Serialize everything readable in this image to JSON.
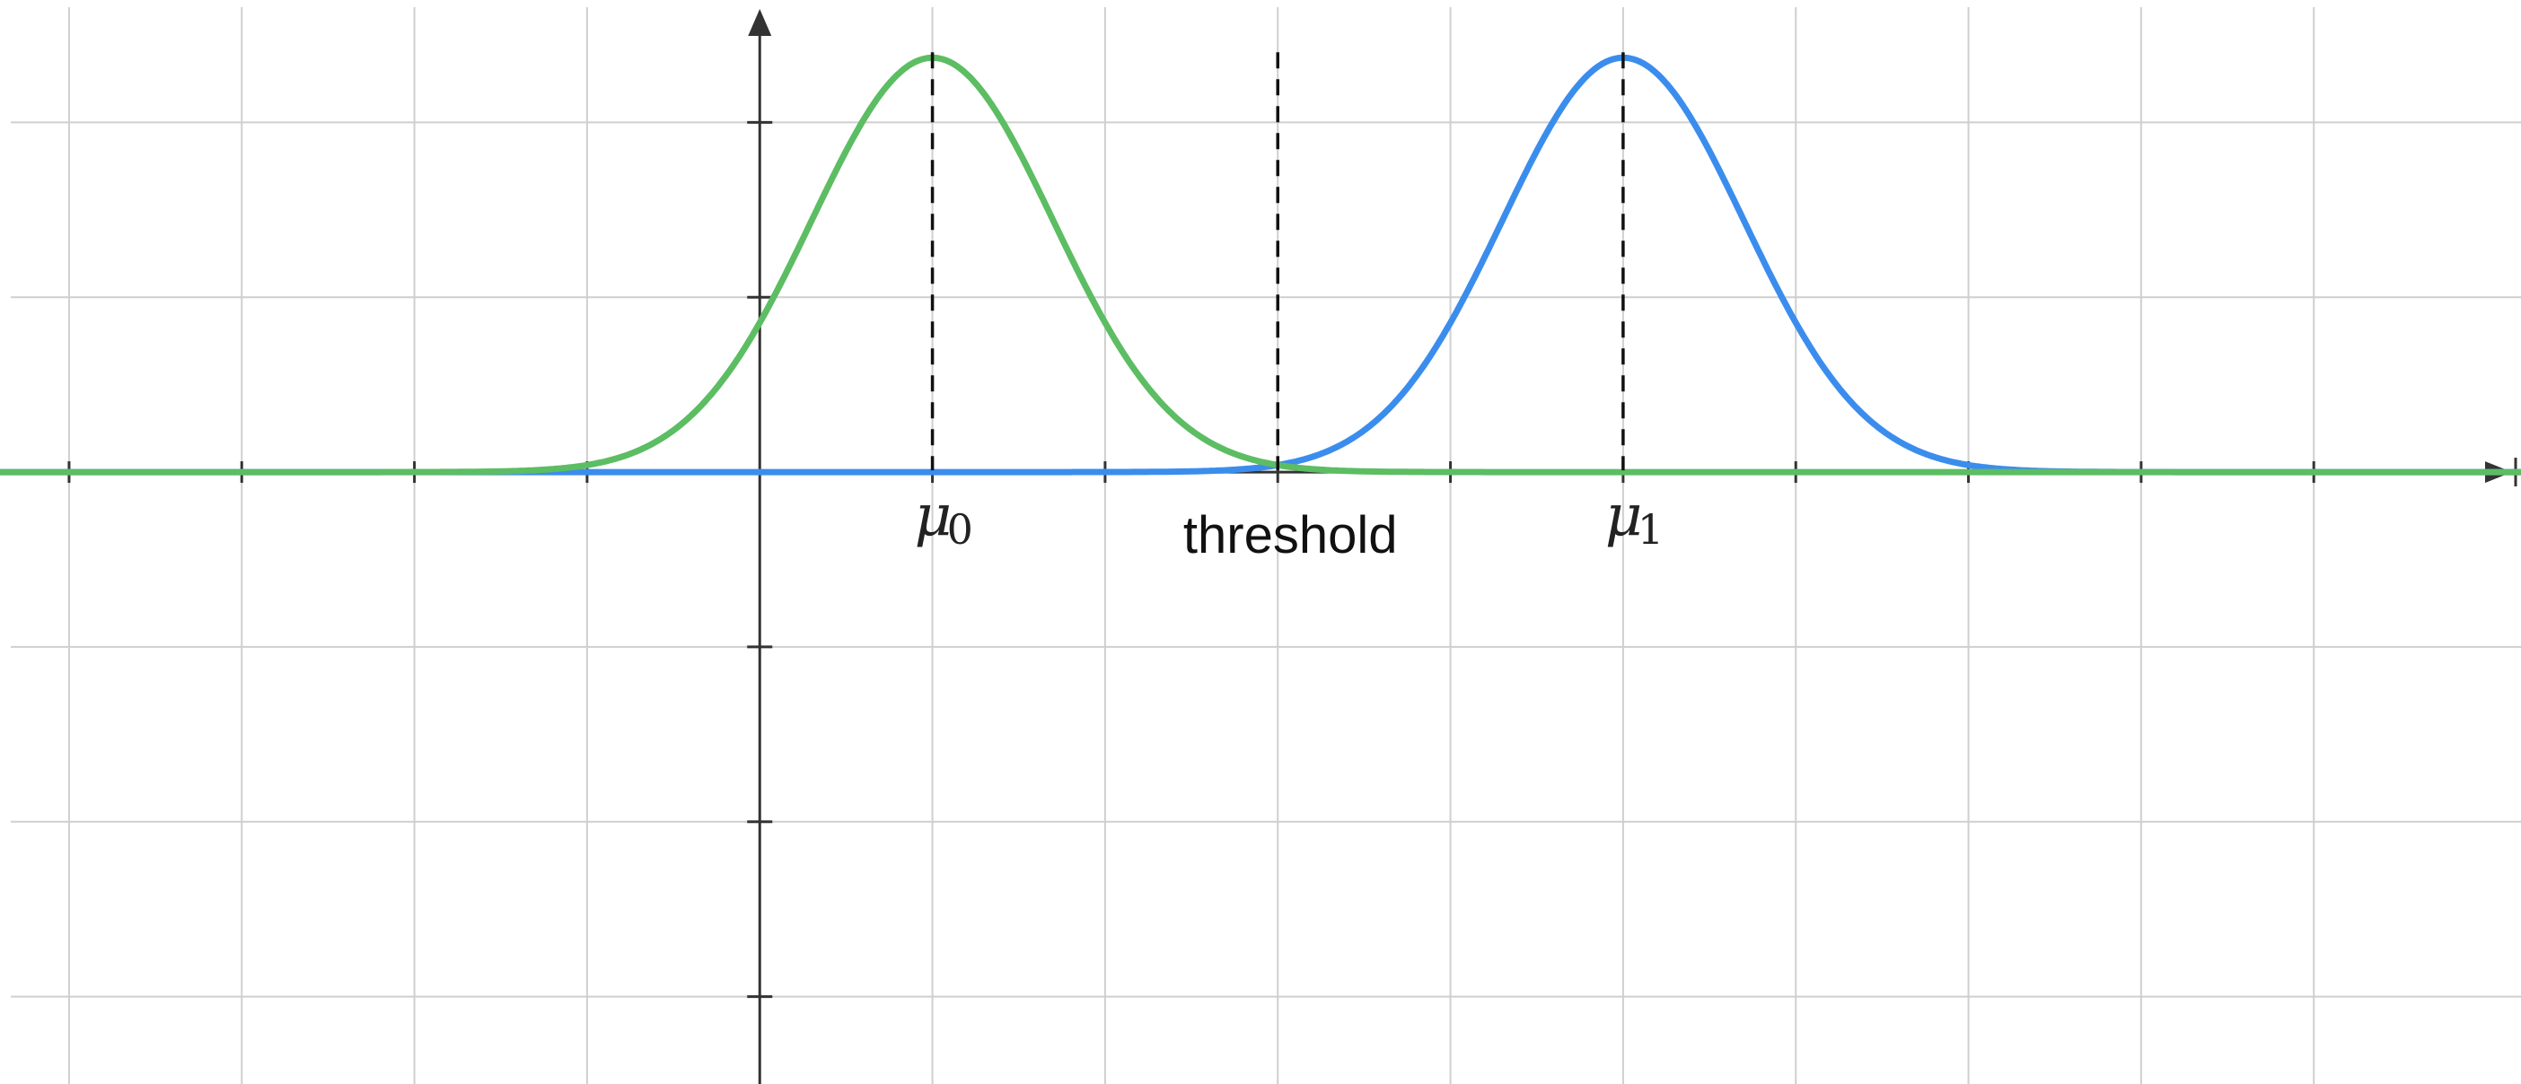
{
  "chart_data": {
    "type": "line",
    "title": "",
    "xlabel": "",
    "ylabel": "",
    "xlim": [
      -4.4,
      10.2
    ],
    "ylim": [
      -3.5,
      2.7
    ],
    "grid": true,
    "x_ticks": [
      -4,
      -3,
      -2,
      -1,
      0,
      1,
      2,
      3,
      4,
      5,
      6,
      7,
      8,
      9
    ],
    "y_ticks": [
      -3,
      -2,
      -1,
      0,
      1,
      2
    ],
    "series": [
      {
        "name": "",
        "color": "#5cbd63",
        "mean": 1,
        "std": 0.7,
        "peak": 2.37,
        "x": [
          -4,
          -3,
          -2,
          -1,
          -0.5,
          0,
          0.5,
          1,
          1.5,
          2,
          2.5,
          3,
          4,
          5,
          6,
          7,
          8,
          9,
          10
        ],
        "y": [
          0.0,
          0.0,
          0.03,
          0.4,
          0.95,
          1.5,
          2.1,
          2.37,
          2.1,
          1.5,
          0.95,
          0.4,
          0.03,
          0.0,
          0.0,
          0.0,
          0.0,
          0.0,
          0.0
        ]
      },
      {
        "name": "",
        "color": "#3b8ded",
        "mean": 5,
        "std": 0.7,
        "peak": 2.37,
        "x": [
          -4,
          -3,
          -2,
          -1,
          0,
          1,
          2,
          3,
          3.5,
          4,
          4.5,
          5,
          5.5,
          6,
          6.5,
          7,
          8,
          9,
          10
        ],
        "y": [
          0.0,
          0.0,
          0.0,
          0.0,
          0.0,
          0.0,
          0.03,
          0.4,
          0.95,
          1.5,
          2.1,
          2.37,
          2.1,
          1.5,
          0.95,
          0.4,
          0.03,
          0.0,
          0.0
        ]
      }
    ],
    "markers": [
      {
        "x": 1,
        "label": "μ",
        "sub": "0"
      },
      {
        "x": 3,
        "label": "threshold",
        "sub": ""
      },
      {
        "x": 5,
        "label": "μ",
        "sub": "1"
      }
    ]
  }
}
